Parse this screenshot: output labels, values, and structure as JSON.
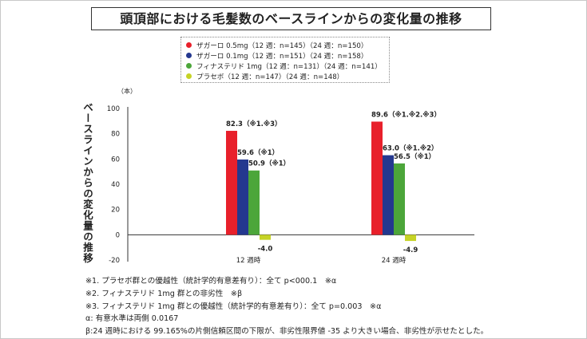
{
  "title": "頭頂部における毛髪数のベースラインからの変化量の推移",
  "chart_data": {
    "type": "bar",
    "title": "頭頂部における毛髪数のベースラインからの変化量の推移",
    "ylabel": "ベースラインからの変化量の推移",
    "y_unit": "（本）",
    "ylim": [
      -20,
      100
    ],
    "y_ticks": [
      100,
      80,
      60,
      40,
      20,
      0,
      -20
    ],
    "categories": [
      "12 週時",
      "24 週時"
    ],
    "series": [
      {
        "name": "ザガーロ 0.5mg（12 週：n=145）（24 週：n=150）",
        "color": "#e8202b",
        "values": [
          82.3,
          89.6
        ],
        "labels": [
          "82.3（※1.※3）",
          "89.6（※1.※2.※3）"
        ]
      },
      {
        "name": "ザガーロ 0.1mg（12 週：n=151）（24 週：n=158）",
        "color": "#24388f",
        "values": [
          59.6,
          63.0
        ],
        "labels": [
          "59.6（※1）",
          "63.0（※1.※2）"
        ]
      },
      {
        "name": "フィナステリド 1mg（12 週：n=131）（24 週：n=141）",
        "color": "#4ca63a",
        "values": [
          50.9,
          56.5
        ],
        "labels": [
          "50.9（※1）",
          "56.5（※1）"
        ]
      },
      {
        "name": "プラセボ（12 週：n=147）（24 週：n=148）",
        "color": "#c6d326",
        "values": [
          -4.0,
          -4.9
        ],
        "labels": [
          "-4.0",
          "-4.9"
        ]
      }
    ]
  },
  "notes": [
    "※1. プラセボ群との優越性（統計学的有意差有り）：全て p<000.1　※α",
    "※2. フィナステリド 1mg 群との非劣性　※β",
    "※3. フィナステリド 1mg 群との優越性（統計学的有意差有り）：全て p=0.003　※α",
    "α: 有意水準は両側 0.0167",
    "β:24 週時における 99.165%の片側信頼区間の下限が、非劣性限界値 -35 より大きい場合、非劣性が示せたとした。"
  ]
}
